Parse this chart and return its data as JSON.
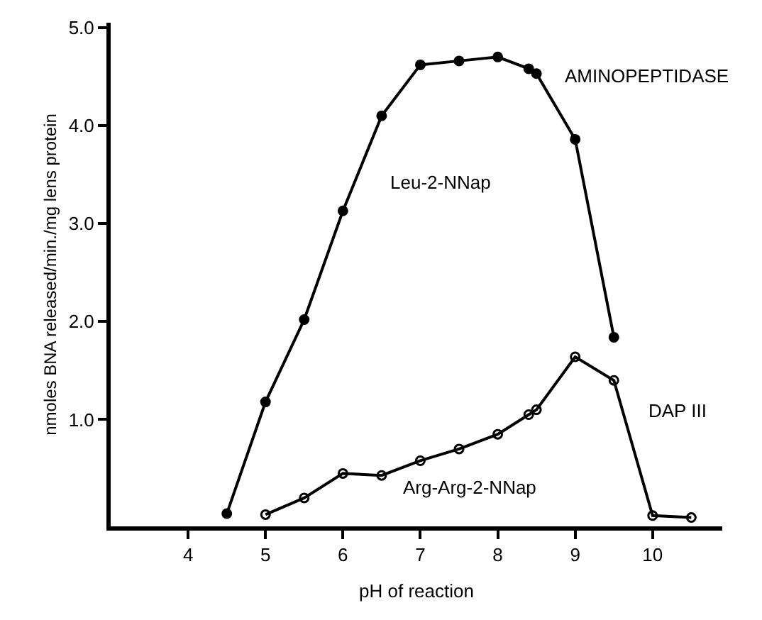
{
  "chart_data": {
    "type": "line",
    "xlabel": "pH of reaction",
    "ylabel": "nmoles BNA released/min./mg lens protein",
    "xlim": [
      3.0,
      10.9
    ],
    "xticks": [
      4,
      5,
      6,
      7,
      8,
      9,
      10
    ],
    "ylim": [
      -0.09,
      5.05
    ],
    "yticks": [
      {
        "value": 1.0,
        "label": "1.0"
      },
      {
        "value": 2.0,
        "label": "2.0"
      },
      {
        "value": 3.0,
        "label": "3.0"
      },
      {
        "value": 4.0,
        "label": "4.0"
      },
      {
        "value": 5.0,
        "label": "5.0"
      }
    ],
    "legend": false,
    "marker": "circle",
    "line_style": "solid",
    "series": [
      {
        "name": "AMINOPEPTIDASE",
        "color": "#000000",
        "x": [
          4.5,
          5,
          5.5,
          6,
          6.5,
          7,
          7.5,
          8,
          8.4,
          8.5,
          9,
          9.5
        ],
        "values": [
          0.04,
          1.18,
          2.02,
          3.13,
          4.1,
          4.62,
          4.66,
          4.7,
          4.58,
          4.53,
          3.86,
          1.84
        ]
      },
      {
        "name": "DAP III",
        "color": "#000000",
        "x": [
          5,
          5.5,
          6,
          6.5,
          7,
          7.5,
          8,
          8.4,
          8.5,
          9,
          9.5,
          10,
          10.5
        ],
        "values": [
          0.03,
          0.2,
          0.45,
          0.43,
          0.58,
          0.7,
          0.85,
          1.05,
          1.1,
          1.64,
          1.4,
          0.02,
          0.0
        ]
      }
    ],
    "annotations": [
      "Leu-2-NNap",
      "Arg-Arg-2-NNap"
    ]
  }
}
